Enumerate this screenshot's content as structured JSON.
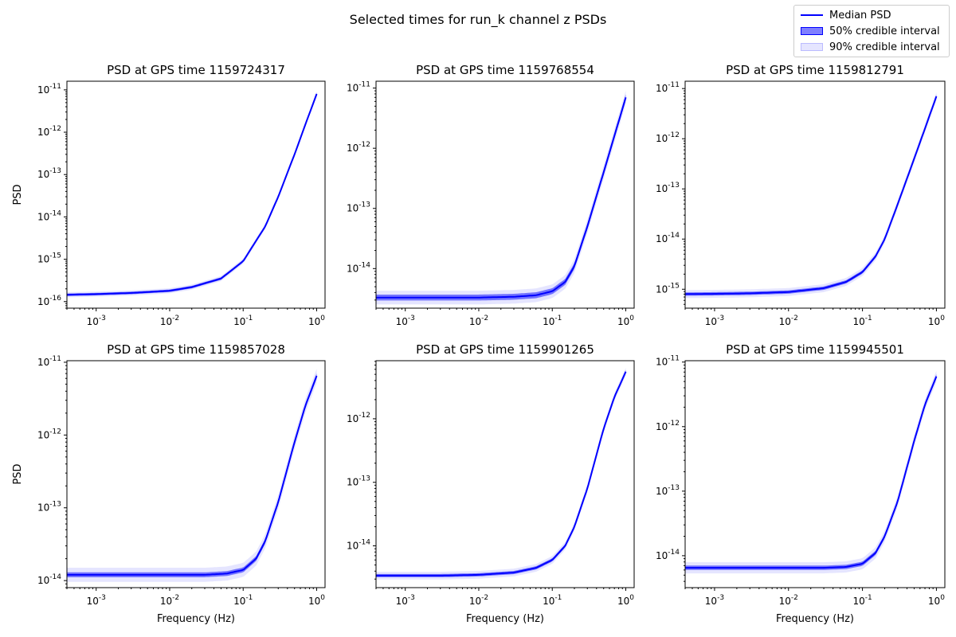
{
  "figure": {
    "suptitle": "Selected times for run_k channel z PSDs"
  },
  "legend": {
    "median": "Median PSD",
    "ci50": "50% credible interval",
    "ci90": "90% credible interval"
  },
  "colors": {
    "line": "#0000ff",
    "band50": "rgba(0,0,255,0.5)",
    "band90": "rgba(0,0,255,0.1)"
  },
  "chart_data": [
    {
      "type": "line",
      "title": "PSD at GPS time 1159724317",
      "xlabel": "",
      "ylabel": "PSD",
      "xscale": "log",
      "yscale": "log",
      "xlim": [
        0.0004,
        1.3
      ],
      "ylim": [
        7e-17,
        1.6e-11
      ],
      "xticks": [
        "10^-3",
        "10^-2",
        "10^-1",
        "10^0"
      ],
      "yticks": [
        "10^-16",
        "10^-15",
        "10^-14",
        "10^-13",
        "10^-12",
        "10^-11"
      ],
      "series": [
        {
          "name": "Median PSD",
          "x": [
            0.0004,
            0.001,
            0.003,
            0.01,
            0.02,
            0.05,
            0.1,
            0.2,
            0.3,
            0.5,
            0.7,
            1.0
          ],
          "y": [
            1.45e-16,
            1.5e-16,
            1.6e-16,
            1.8e-16,
            2.2e-16,
            3.5e-16,
            9e-16,
            6e-15,
            3e-14,
            3e-13,
            1.5e-12,
            8e-12
          ]
        },
        {
          "name": "50% credible interval",
          "width_factor": 1.07
        },
        {
          "name": "90% credible interval",
          "width_factor": 1.15
        }
      ]
    },
    {
      "type": "line",
      "title": "PSD at GPS time 1159768554",
      "xlabel": "",
      "ylabel": "",
      "xscale": "log",
      "yscale": "log",
      "xlim": [
        0.0004,
        1.3
      ],
      "ylim": [
        2.2e-15,
        1.3e-11
      ],
      "xticks": [
        "10^-3",
        "10^-2",
        "10^-1",
        "10^0"
      ],
      "yticks": [
        "10^-14",
        "10^-13",
        "10^-12",
        "10^-11"
      ],
      "series": [
        {
          "name": "Median PSD",
          "x": [
            0.0004,
            0.001,
            0.003,
            0.01,
            0.03,
            0.06,
            0.1,
            0.15,
            0.2,
            0.3,
            0.5,
            0.7,
            1.0
          ],
          "y": [
            3.3e-15,
            3.3e-15,
            3.3e-15,
            3.3e-15,
            3.4e-15,
            3.6e-15,
            4.2e-15,
            6e-15,
            1.1e-14,
            5e-14,
            4e-13,
            1.6e-12,
            7e-12
          ]
        },
        {
          "name": "50% credible interval",
          "width_factor": 1.12
        },
        {
          "name": "90% credible interval",
          "width_factor": 1.3
        }
      ]
    },
    {
      "type": "line",
      "title": "PSD at GPS time 1159812791",
      "xlabel": "",
      "ylabel": "",
      "xscale": "log",
      "yscale": "log",
      "xlim": [
        0.0004,
        1.3
      ],
      "ylim": [
        4.2e-16,
        1.4e-11
      ],
      "xticks": [
        "10^-3",
        "10^-2",
        "10^-1",
        "10^0"
      ],
      "yticks": [
        "10^-15",
        "10^-14",
        "10^-13",
        "10^-12",
        "10^-11"
      ],
      "series": [
        {
          "name": "Median PSD",
          "x": [
            0.0004,
            0.001,
            0.003,
            0.01,
            0.03,
            0.06,
            0.1,
            0.15,
            0.2,
            0.3,
            0.5,
            0.7,
            1.0
          ],
          "y": [
            8e-16,
            8.1e-16,
            8.3e-16,
            8.8e-16,
            1.05e-15,
            1.4e-15,
            2.2e-15,
            4.5e-15,
            1e-14,
            5e-14,
            4e-13,
            1.6e-12,
            7e-12
          ]
        },
        {
          "name": "50% credible interval",
          "width_factor": 1.08
        },
        {
          "name": "90% credible interval",
          "width_factor": 1.2
        }
      ]
    },
    {
      "type": "line",
      "title": "PSD at GPS time 1159857028",
      "xlabel": "Frequency (Hz)",
      "ylabel": "PSD",
      "xscale": "log",
      "yscale": "log",
      "xlim": [
        0.0004,
        1.3
      ],
      "ylim": [
        8e-15,
        1.05e-11
      ],
      "xticks": [
        "10^-3",
        "10^-2",
        "10^-1",
        "10^0"
      ],
      "yticks": [
        "10^-14",
        "10^-13",
        "10^-12",
        "10^-11"
      ],
      "series": [
        {
          "name": "Median PSD",
          "x": [
            0.0004,
            0.001,
            0.003,
            0.01,
            0.03,
            0.06,
            0.1,
            0.15,
            0.2,
            0.3,
            0.5,
            0.7,
            1.0
          ],
          "y": [
            1.2e-14,
            1.2e-14,
            1.2e-14,
            1.2e-14,
            1.2e-14,
            1.25e-14,
            1.4e-14,
            2e-14,
            3.5e-14,
            1.2e-13,
            8e-13,
            2.5e-12,
            6.5e-12
          ]
        },
        {
          "name": "50% credible interval",
          "width_factor": 1.08
        },
        {
          "name": "90% credible interval",
          "width_factor": 1.25
        }
      ]
    },
    {
      "type": "line",
      "title": "PSD at GPS time 1159901265",
      "xlabel": "Frequency (Hz)",
      "ylabel": "",
      "xscale": "log",
      "yscale": "log",
      "xlim": [
        0.0004,
        1.3
      ],
      "ylim": [
        2.2e-15,
        8.2e-12
      ],
      "xticks": [
        "10^-3",
        "10^-2",
        "10^-1",
        "10^0"
      ],
      "yticks": [
        "10^-14",
        "10^-13",
        "10^-12"
      ],
      "series": [
        {
          "name": "Median PSD",
          "x": [
            0.0004,
            0.001,
            0.003,
            0.01,
            0.03,
            0.06,
            0.1,
            0.15,
            0.2,
            0.3,
            0.5,
            0.7,
            1.0
          ],
          "y": [
            3.4e-15,
            3.4e-15,
            3.4e-15,
            3.5e-15,
            3.8e-15,
            4.5e-15,
            6e-15,
            1e-14,
            2e-14,
            8e-14,
            7e-13,
            2.2e-12,
            5.5e-12
          ]
        },
        {
          "name": "50% credible interval",
          "width_factor": 1.06
        },
        {
          "name": "90% credible interval",
          "width_factor": 1.15
        }
      ]
    },
    {
      "type": "line",
      "title": "PSD at GPS time 1159945501",
      "xlabel": "Frequency (Hz)",
      "ylabel": "",
      "xscale": "log",
      "yscale": "log",
      "xlim": [
        0.0004,
        1.3
      ],
      "ylim": [
        3.2e-15,
        1.05e-11
      ],
      "xticks": [
        "10^-3",
        "10^-2",
        "10^-1",
        "10^0"
      ],
      "yticks": [
        "10^-14",
        "10^-13",
        "10^-12",
        "10^-11"
      ],
      "series": [
        {
          "name": "Median PSD",
          "x": [
            0.0004,
            0.001,
            0.003,
            0.01,
            0.03,
            0.06,
            0.1,
            0.15,
            0.2,
            0.3,
            0.5,
            0.7,
            1.0
          ],
          "y": [
            6.5e-15,
            6.5e-15,
            6.5e-15,
            6.5e-15,
            6.5e-15,
            6.7e-15,
            7.5e-15,
            1.1e-14,
            2e-14,
            7e-14,
            6e-13,
            2.2e-12,
            6e-12
          ]
        },
        {
          "name": "50% credible interval",
          "width_factor": 1.08
        },
        {
          "name": "90% credible interval",
          "width_factor": 1.22
        }
      ]
    }
  ]
}
